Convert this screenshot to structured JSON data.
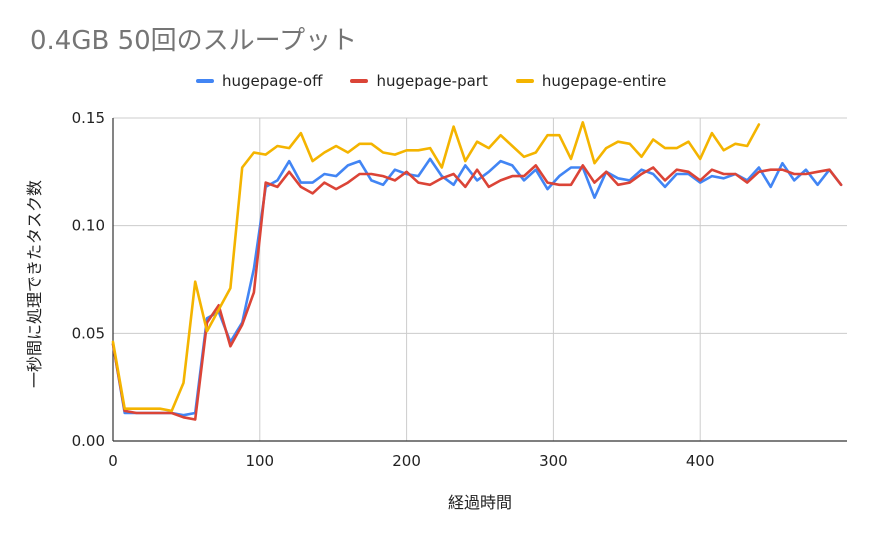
{
  "chart_data": {
    "type": "line",
    "title": "0.4GB 50回のスループット",
    "xlabel": "経過時間",
    "ylabel": "一秒間に処理できたタスク数",
    "xlim": [
      0,
      500
    ],
    "ylim": [
      0,
      0.15
    ],
    "x_ticks": [
      "0",
      "100",
      "200",
      "300",
      "400"
    ],
    "y_ticks": [
      "0.00",
      "0.05",
      "0.10",
      "0.15"
    ],
    "grid": true,
    "legend_position": "top",
    "series": [
      {
        "name": "hugepage-off",
        "color": "#4285F4",
        "points": [
          [
            0,
            0.045
          ],
          [
            8,
            0.013
          ],
          [
            16,
            0.013
          ],
          [
            24,
            0.013
          ],
          [
            32,
            0.013
          ],
          [
            40,
            0.013
          ],
          [
            48,
            0.012
          ],
          [
            56,
            0.013
          ],
          [
            64,
            0.057
          ],
          [
            72,
            0.06
          ],
          [
            80,
            0.046
          ],
          [
            88,
            0.055
          ],
          [
            96,
            0.08
          ],
          [
            104,
            0.118
          ],
          [
            112,
            0.121
          ],
          [
            120,
            0.13
          ],
          [
            128,
            0.12
          ],
          [
            136,
            0.12
          ],
          [
            144,
            0.124
          ],
          [
            152,
            0.123
          ],
          [
            160,
            0.128
          ],
          [
            168,
            0.13
          ],
          [
            176,
            0.121
          ],
          [
            184,
            0.119
          ],
          [
            192,
            0.126
          ],
          [
            200,
            0.124
          ],
          [
            208,
            0.123
          ],
          [
            216,
            0.131
          ],
          [
            224,
            0.123
          ],
          [
            232,
            0.119
          ],
          [
            240,
            0.128
          ],
          [
            248,
            0.121
          ],
          [
            256,
            0.125
          ],
          [
            264,
            0.13
          ],
          [
            272,
            0.128
          ],
          [
            280,
            0.121
          ],
          [
            288,
            0.126
          ],
          [
            296,
            0.117
          ],
          [
            304,
            0.123
          ],
          [
            312,
            0.127
          ],
          [
            320,
            0.127
          ],
          [
            328,
            0.113
          ],
          [
            336,
            0.125
          ],
          [
            344,
            0.122
          ],
          [
            352,
            0.121
          ],
          [
            360,
            0.126
          ],
          [
            368,
            0.124
          ],
          [
            376,
            0.118
          ],
          [
            384,
            0.124
          ],
          [
            392,
            0.124
          ],
          [
            400,
            0.12
          ],
          [
            408,
            0.123
          ],
          [
            416,
            0.122
          ],
          [
            424,
            0.124
          ],
          [
            432,
            0.121
          ],
          [
            440,
            0.127
          ],
          [
            448,
            0.118
          ],
          [
            456,
            0.129
          ],
          [
            464,
            0.121
          ],
          [
            472,
            0.126
          ],
          [
            480,
            0.119
          ],
          [
            488,
            0.126
          ],
          [
            496,
            0.119
          ]
        ]
      },
      {
        "name": "hugepage-part",
        "color": "#DB4437",
        "points": [
          [
            0,
            0.045
          ],
          [
            8,
            0.014
          ],
          [
            16,
            0.013
          ],
          [
            24,
            0.013
          ],
          [
            32,
            0.013
          ],
          [
            40,
            0.013
          ],
          [
            48,
            0.011
          ],
          [
            56,
            0.01
          ],
          [
            64,
            0.055
          ],
          [
            72,
            0.063
          ],
          [
            80,
            0.044
          ],
          [
            88,
            0.054
          ],
          [
            96,
            0.069
          ],
          [
            104,
            0.12
          ],
          [
            112,
            0.118
          ],
          [
            120,
            0.125
          ],
          [
            128,
            0.118
          ],
          [
            136,
            0.115
          ],
          [
            144,
            0.12
          ],
          [
            152,
            0.117
          ],
          [
            160,
            0.12
          ],
          [
            168,
            0.124
          ],
          [
            176,
            0.124
          ],
          [
            184,
            0.123
          ],
          [
            192,
            0.121
          ],
          [
            200,
            0.125
          ],
          [
            208,
            0.12
          ],
          [
            216,
            0.119
          ],
          [
            224,
            0.122
          ],
          [
            232,
            0.124
          ],
          [
            240,
            0.118
          ],
          [
            248,
            0.126
          ],
          [
            256,
            0.118
          ],
          [
            264,
            0.121
          ],
          [
            272,
            0.123
          ],
          [
            280,
            0.123
          ],
          [
            288,
            0.128
          ],
          [
            296,
            0.12
          ],
          [
            304,
            0.119
          ],
          [
            312,
            0.119
          ],
          [
            320,
            0.128
          ],
          [
            328,
            0.12
          ],
          [
            336,
            0.125
          ],
          [
            344,
            0.119
          ],
          [
            352,
            0.12
          ],
          [
            360,
            0.124
          ],
          [
            368,
            0.127
          ],
          [
            376,
            0.121
          ],
          [
            384,
            0.126
          ],
          [
            392,
            0.125
          ],
          [
            400,
            0.121
          ],
          [
            408,
            0.126
          ],
          [
            416,
            0.124
          ],
          [
            424,
            0.124
          ],
          [
            432,
            0.12
          ],
          [
            440,
            0.125
          ],
          [
            448,
            0.126
          ],
          [
            456,
            0.126
          ],
          [
            464,
            0.124
          ],
          [
            472,
            0.124
          ],
          [
            480,
            0.125
          ],
          [
            488,
            0.126
          ],
          [
            496,
            0.119
          ]
        ]
      },
      {
        "name": "hugepage-entire",
        "color": "#F4B400",
        "points": [
          [
            0,
            0.046
          ],
          [
            8,
            0.015
          ],
          [
            16,
            0.015
          ],
          [
            24,
            0.015
          ],
          [
            32,
            0.015
          ],
          [
            40,
            0.014
          ],
          [
            48,
            0.027
          ],
          [
            56,
            0.074
          ],
          [
            64,
            0.051
          ],
          [
            72,
            0.061
          ],
          [
            80,
            0.071
          ],
          [
            88,
            0.127
          ],
          [
            96,
            0.134
          ],
          [
            104,
            0.133
          ],
          [
            112,
            0.137
          ],
          [
            120,
            0.136
          ],
          [
            128,
            0.143
          ],
          [
            136,
            0.13
          ],
          [
            144,
            0.134
          ],
          [
            152,
            0.137
          ],
          [
            160,
            0.134
          ],
          [
            168,
            0.138
          ],
          [
            176,
            0.138
          ],
          [
            184,
            0.134
          ],
          [
            192,
            0.133
          ],
          [
            200,
            0.135
          ],
          [
            208,
            0.135
          ],
          [
            216,
            0.136
          ],
          [
            224,
            0.127
          ],
          [
            232,
            0.146
          ],
          [
            240,
            0.13
          ],
          [
            248,
            0.139
          ],
          [
            256,
            0.136
          ],
          [
            264,
            0.142
          ],
          [
            272,
            0.137
          ],
          [
            280,
            0.132
          ],
          [
            288,
            0.134
          ],
          [
            296,
            0.142
          ],
          [
            304,
            0.142
          ],
          [
            312,
            0.131
          ],
          [
            320,
            0.148
          ],
          [
            328,
            0.129
          ],
          [
            336,
            0.136
          ],
          [
            344,
            0.139
          ],
          [
            352,
            0.138
          ],
          [
            360,
            0.132
          ],
          [
            368,
            0.14
          ],
          [
            376,
            0.136
          ],
          [
            384,
            0.136
          ],
          [
            392,
            0.139
          ],
          [
            400,
            0.131
          ],
          [
            408,
            0.143
          ],
          [
            416,
            0.135
          ],
          [
            424,
            0.138
          ],
          [
            432,
            0.137
          ],
          [
            440,
            0.147
          ]
        ]
      }
    ]
  },
  "colors": {
    "grid": "#cccccc",
    "axis": "#333333",
    "title": "#757575"
  }
}
